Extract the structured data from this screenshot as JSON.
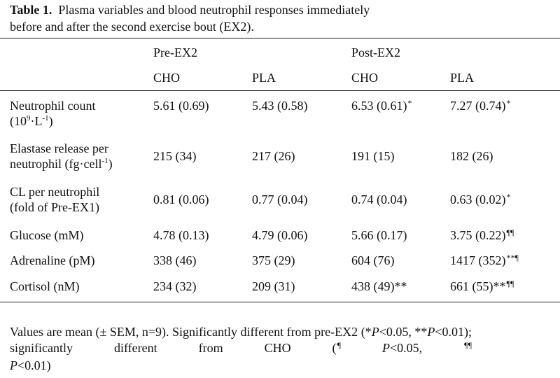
{
  "caption": {
    "label": "Table 1.",
    "line1": "Plasma variables and blood neutrophil responses immediately",
    "line2": "before and after the second exercise bout (EX2)."
  },
  "headers": {
    "groups": [
      "Pre-EX2",
      "Post-EX2"
    ],
    "columns": [
      "CHO",
      "PLA",
      "CHO",
      "PLA"
    ]
  },
  "rows": [
    {
      "label1": "Neutrophil count",
      "label2_pre": "(10",
      "label2_sup1": "9",
      "label2_mid": "·L",
      "label2_sup2": "-1",
      "label2_post": ")",
      "cells": [
        {
          "value": "5.61 (0.69)",
          "mark": ""
        },
        {
          "value": "5.43 (0.58)",
          "mark": ""
        },
        {
          "value": "6.53 (0.61)",
          "mark": "*"
        },
        {
          "value": "7.27 (0.74)",
          "mark": "*"
        }
      ]
    },
    {
      "label1": "Elastase release per",
      "label2_pre": "neutrophil (fg·cell",
      "label2_sup1": "-1",
      "label2_post": ")",
      "cells": [
        {
          "value": "215 (34)",
          "mark": ""
        },
        {
          "value": "217 (26)",
          "mark": ""
        },
        {
          "value": "191 (15)",
          "mark": ""
        },
        {
          "value": "182 (26)",
          "mark": ""
        }
      ]
    },
    {
      "label1": "CL per neutrophil",
      "label2_pre": "(fold of Pre-EX1)",
      "cells": [
        {
          "value": "0.81 (0.06)",
          "mark": ""
        },
        {
          "value": "0.77 (0.04)",
          "mark": ""
        },
        {
          "value": "0.74 (0.04)",
          "mark": ""
        },
        {
          "value": "0.63 (0.02)",
          "mark": "*"
        }
      ]
    },
    {
      "label1": "Glucose (mM)",
      "cells": [
        {
          "value": "4.78 (0.13)",
          "mark": ""
        },
        {
          "value": "4.79 (0.06)",
          "mark": ""
        },
        {
          "value": "5.66 (0.17)",
          "mark": ""
        },
        {
          "value": "3.75 (0.22)",
          "mark": "¶¶"
        }
      ]
    },
    {
      "label1": "Adrenaline (pM)",
      "cells": [
        {
          "value": "338 (46)",
          "mark": ""
        },
        {
          "value": "375 (29)",
          "mark": ""
        },
        {
          "value": "604 (76)",
          "mark": ""
        },
        {
          "value": "1417 (352)",
          "mark": "**¶"
        }
      ]
    },
    {
      "label1": "Cortisol (nM)",
      "cells": [
        {
          "value": "234 (32)",
          "mark": ""
        },
        {
          "value": "209 (31)",
          "mark": ""
        },
        {
          "value": "438 (49)**",
          "mark": ""
        },
        {
          "value": "661 (55)**",
          "mark": "¶¶"
        }
      ]
    }
  ],
  "notes": {
    "l1": "Values are mean (± SEM, n=9). Significantly different from pre-EX2",
    "l2a": "(*",
    "l2b": "P",
    "l2c": "<0.05, **",
    "l2d": "P",
    "l2e": "<0.01); significantly different from CHO (",
    "l2f": "¶",
    "l2g": " ",
    "l2h": "P",
    "l2i": "<0.05, ",
    "l2j": "¶¶",
    "l3a": "P",
    "l3b": "<0.01)"
  }
}
